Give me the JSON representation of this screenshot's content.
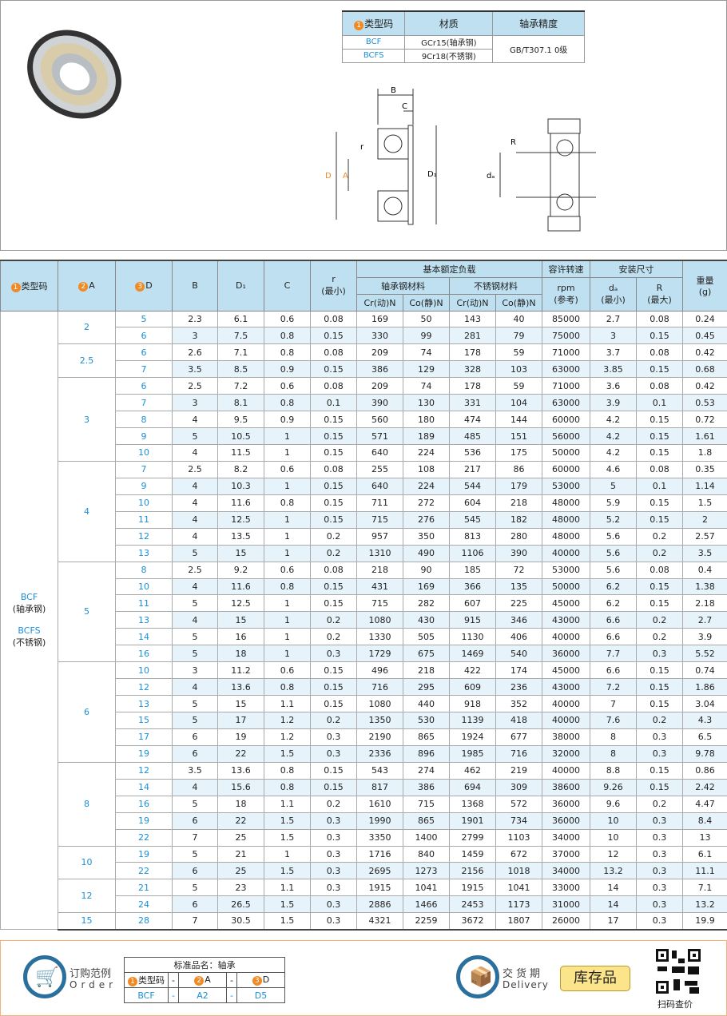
{
  "spec_table": {
    "headers": [
      "类型码",
      "材质",
      "轴承精度"
    ],
    "rows": [
      {
        "code": "BCF",
        "material": "GCr15(轴承钢)"
      },
      {
        "code": "BCFS",
        "material": "9Cr18(不锈钢)"
      }
    ],
    "precision": "GB/T307.1 0级"
  },
  "drawing_labels": {
    "B": "B",
    "C": "C",
    "r": "r",
    "D1": "D₁",
    "D": "D",
    "A": "A",
    "R": "R",
    "da": "dₐ"
  },
  "table": {
    "h": {
      "type": "类型码",
      "A": "A",
      "D": "D",
      "B": "B",
      "D1": "D₁",
      "C": "C",
      "r": "r",
      "r_sub": "(最小)",
      "load": "基本额定负载",
      "bearing_steel": "轴承钢材料",
      "stainless": "不锈钢材料",
      "cr": "Cr(动)N",
      "co": "Co(静)N",
      "speed": "容许转速",
      "rpm": "rpm",
      "ref": "(参考)",
      "install": "安装尺寸",
      "da": "dₐ",
      "da_sub": "(最小)",
      "R": "R",
      "R_sub": "(最大)",
      "weight": "重量",
      "g": "(g)"
    },
    "type_label": [
      "BCF",
      "(轴承钢)",
      "BCFS",
      "(不锈钢)"
    ],
    "groups": [
      {
        "A": "2",
        "rows": [
          [
            "5",
            "2.3",
            "6.1",
            "0.6",
            "0.08",
            "169",
            "50",
            "143",
            "40",
            "85000",
            "2.7",
            "0.08",
            "0.24"
          ],
          [
            "6",
            "3",
            "7.5",
            "0.8",
            "0.15",
            "330",
            "99",
            "281",
            "79",
            "75000",
            "3",
            "0.15",
            "0.45"
          ]
        ]
      },
      {
        "A": "2.5",
        "rows": [
          [
            "6",
            "2.6",
            "7.1",
            "0.8",
            "0.08",
            "209",
            "74",
            "178",
            "59",
            "71000",
            "3.7",
            "0.08",
            "0.42"
          ],
          [
            "7",
            "3.5",
            "8.5",
            "0.9",
            "0.15",
            "386",
            "129",
            "328",
            "103",
            "63000",
            "3.85",
            "0.15",
            "0.68"
          ]
        ]
      },
      {
        "A": "3",
        "rows": [
          [
            "6",
            "2.5",
            "7.2",
            "0.6",
            "0.08",
            "209",
            "74",
            "178",
            "59",
            "71000",
            "3.6",
            "0.08",
            "0.42"
          ],
          [
            "7",
            "3",
            "8.1",
            "0.8",
            "0.1",
            "390",
            "130",
            "331",
            "104",
            "63000",
            "3.9",
            "0.1",
            "0.53"
          ],
          [
            "8",
            "4",
            "9.5",
            "0.9",
            "0.15",
            "560",
            "180",
            "474",
            "144",
            "60000",
            "4.2",
            "0.15",
            "0.72"
          ],
          [
            "9",
            "5",
            "10.5",
            "1",
            "0.15",
            "571",
            "189",
            "485",
            "151",
            "56000",
            "4.2",
            "0.15",
            "1.61"
          ],
          [
            "10",
            "4",
            "11.5",
            "1",
            "0.15",
            "640",
            "224",
            "536",
            "175",
            "50000",
            "4.2",
            "0.15",
            "1.8"
          ]
        ]
      },
      {
        "A": "4",
        "rows": [
          [
            "7",
            "2.5",
            "8.2",
            "0.6",
            "0.08",
            "255",
            "108",
            "217",
            "86",
            "60000",
            "4.6",
            "0.08",
            "0.35"
          ],
          [
            "9",
            "4",
            "10.3",
            "1",
            "0.15",
            "640",
            "224",
            "544",
            "179",
            "53000",
            "5",
            "0.1",
            "1.14"
          ],
          [
            "10",
            "4",
            "11.6",
            "0.8",
            "0.15",
            "711",
            "272",
            "604",
            "218",
            "48000",
            "5.9",
            "0.15",
            "1.5"
          ],
          [
            "11",
            "4",
            "12.5",
            "1",
            "0.15",
            "715",
            "276",
            "545",
            "182",
            "48000",
            "5.2",
            "0.15",
            "2"
          ],
          [
            "12",
            "4",
            "13.5",
            "1",
            "0.2",
            "957",
            "350",
            "813",
            "280",
            "48000",
            "5.6",
            "0.2",
            "2.57"
          ],
          [
            "13",
            "5",
            "15",
            "1",
            "0.2",
            "1310",
            "490",
            "1106",
            "390",
            "40000",
            "5.6",
            "0.2",
            "3.5"
          ]
        ]
      },
      {
        "A": "5",
        "rows": [
          [
            "8",
            "2.5",
            "9.2",
            "0.6",
            "0.08",
            "218",
            "90",
            "185",
            "72",
            "53000",
            "5.6",
            "0.08",
            "0.4"
          ],
          [
            "10",
            "4",
            "11.6",
            "0.8",
            "0.15",
            "431",
            "169",
            "366",
            "135",
            "50000",
            "6.2",
            "0.15",
            "1.38"
          ],
          [
            "11",
            "5",
            "12.5",
            "1",
            "0.15",
            "715",
            "282",
            "607",
            "225",
            "45000",
            "6.2",
            "0.15",
            "2.18"
          ],
          [
            "13",
            "4",
            "15",
            "1",
            "0.2",
            "1080",
            "430",
            "915",
            "346",
            "43000",
            "6.6",
            "0.2",
            "2.7"
          ],
          [
            "14",
            "5",
            "16",
            "1",
            "0.2",
            "1330",
            "505",
            "1130",
            "406",
            "40000",
            "6.6",
            "0.2",
            "3.9"
          ],
          [
            "16",
            "5",
            "18",
            "1",
            "0.3",
            "1729",
            "675",
            "1469",
            "540",
            "36000",
            "7.7",
            "0.3",
            "5.52"
          ]
        ]
      },
      {
        "A": "6",
        "rows": [
          [
            "10",
            "3",
            "11.2",
            "0.6",
            "0.15",
            "496",
            "218",
            "422",
            "174",
            "45000",
            "6.6",
            "0.15",
            "0.74"
          ],
          [
            "12",
            "4",
            "13.6",
            "0.8",
            "0.15",
            "716",
            "295",
            "609",
            "236",
            "43000",
            "7.2",
            "0.15",
            "1.86"
          ],
          [
            "13",
            "5",
            "15",
            "1.1",
            "0.15",
            "1080",
            "440",
            "918",
            "352",
            "40000",
            "7",
            "0.15",
            "3.04"
          ],
          [
            "15",
            "5",
            "17",
            "1.2",
            "0.2",
            "1350",
            "530",
            "1139",
            "418",
            "40000",
            "7.6",
            "0.2",
            "4.3"
          ],
          [
            "17",
            "6",
            "19",
            "1.2",
            "0.3",
            "2190",
            "865",
            "1924",
            "677",
            "38000",
            "8",
            "0.3",
            "6.5"
          ],
          [
            "19",
            "6",
            "22",
            "1.5",
            "0.3",
            "2336",
            "896",
            "1985",
            "716",
            "32000",
            "8",
            "0.3",
            "9.78"
          ]
        ]
      },
      {
        "A": "8",
        "rows": [
          [
            "12",
            "3.5",
            "13.6",
            "0.8",
            "0.15",
            "543",
            "274",
            "462",
            "219",
            "40000",
            "8.8",
            "0.15",
            "0.86"
          ],
          [
            "14",
            "4",
            "15.6",
            "0.8",
            "0.15",
            "817",
            "386",
            "694",
            "309",
            "38600",
            "9.26",
            "0.15",
            "2.42"
          ],
          [
            "16",
            "5",
            "18",
            "1.1",
            "0.2",
            "1610",
            "715",
            "1368",
            "572",
            "36000",
            "9.6",
            "0.2",
            "4.47"
          ],
          [
            "19",
            "6",
            "22",
            "1.5",
            "0.3",
            "1990",
            "865",
            "1901",
            "734",
            "36000",
            "10",
            "0.3",
            "8.4"
          ],
          [
            "22",
            "7",
            "25",
            "1.5",
            "0.3",
            "3350",
            "1400",
            "2799",
            "1103",
            "34000",
            "10",
            "0.3",
            "13"
          ]
        ]
      },
      {
        "A": "10",
        "rows": [
          [
            "19",
            "5",
            "21",
            "1",
            "0.3",
            "1716",
            "840",
            "1459",
            "672",
            "37000",
            "12",
            "0.3",
            "6.1"
          ],
          [
            "22",
            "6",
            "25",
            "1.5",
            "0.3",
            "2695",
            "1273",
            "2156",
            "1018",
            "34000",
            "13.2",
            "0.3",
            "11.1"
          ]
        ]
      },
      {
        "A": "12",
        "rows": [
          [
            "21",
            "5",
            "23",
            "1.1",
            "0.3",
            "1915",
            "1041",
            "1915",
            "1041",
            "33000",
            "14",
            "0.3",
            "7.1"
          ],
          [
            "24",
            "6",
            "26.5",
            "1.5",
            "0.3",
            "2886",
            "1466",
            "2453",
            "1173",
            "31000",
            "14",
            "0.3",
            "13.2"
          ]
        ]
      },
      {
        "A": "15",
        "rows": [
          [
            "28",
            "7",
            "30.5",
            "1.5",
            "0.3",
            "4321",
            "2259",
            "3672",
            "1807",
            "26000",
            "17",
            "0.3",
            "19.9"
          ]
        ]
      }
    ]
  },
  "footer": {
    "order_cn": "订购范例",
    "order_en": "Order",
    "std_name": "标准品名：轴承",
    "col_type": "类型码",
    "col_A": "A",
    "col_D": "D",
    "dash": "-",
    "ex_type": "BCF",
    "ex_A": "A2",
    "ex_D": "D5",
    "delivery_cn": "交货期",
    "delivery_en": "Delivery",
    "stock": "库存品",
    "qr": "扫码查价"
  },
  "colors": {
    "accent": "#1a8fd6",
    "header_bg": "#bfe0f1",
    "badge": "#f08a24",
    "stock_bg": "#fbe48a"
  }
}
